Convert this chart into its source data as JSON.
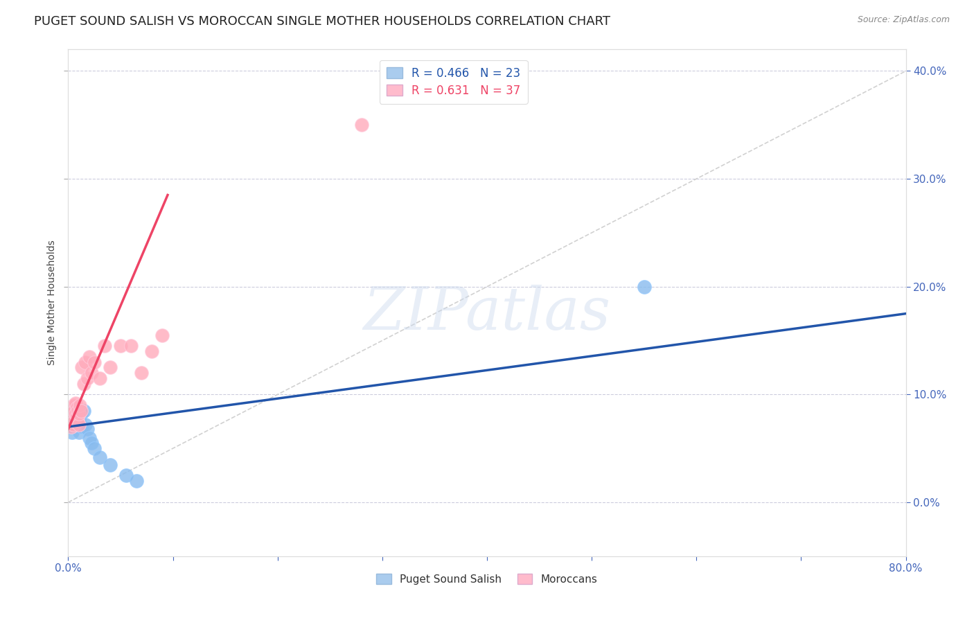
{
  "title": "PUGET SOUND SALISH VS MOROCCAN SINGLE MOTHER HOUSEHOLDS CORRELATION CHART",
  "source": "Source: ZipAtlas.com",
  "ylabel": "Single Mother Households",
  "xlim": [
    0.0,
    0.8
  ],
  "ylim": [
    -0.05,
    0.42
  ],
  "yticks": [
    0.0,
    0.1,
    0.2,
    0.3,
    0.4
  ],
  "xticks": [
    0.0,
    0.1,
    0.2,
    0.3,
    0.4,
    0.5,
    0.6,
    0.7,
    0.8
  ],
  "xtick_labels_show": [
    0.0,
    0.8
  ],
  "blue_R": "0.466",
  "blue_N": "23",
  "pink_R": "0.631",
  "pink_N": "37",
  "blue_dot_color": "#88BBEE",
  "pink_dot_color": "#FFAABB",
  "blue_dot_edge": "#99CCFF",
  "pink_dot_edge": "#FFCCDD",
  "blue_line_color": "#2255AA",
  "pink_line_color": "#EE4466",
  "ref_line_color": "#CCCCCC",
  "legend_blue_label": "Puget Sound Salish",
  "legend_pink_label": "Moroccans",
  "legend_blue_patch": "#AACCEE",
  "legend_pink_patch": "#FFBBCC",
  "watermark": "ZIPatlas",
  "blue_points_x": [
    0.003,
    0.004,
    0.005,
    0.006,
    0.007,
    0.008,
    0.008,
    0.009,
    0.01,
    0.01,
    0.012,
    0.013,
    0.015,
    0.016,
    0.018,
    0.02,
    0.022,
    0.025,
    0.03,
    0.04,
    0.055,
    0.065,
    0.55
  ],
  "blue_points_y": [
    0.07,
    0.065,
    0.075,
    0.08,
    0.07,
    0.085,
    0.075,
    0.072,
    0.078,
    0.065,
    0.082,
    0.07,
    0.085,
    0.072,
    0.068,
    0.06,
    0.055,
    0.05,
    0.042,
    0.035,
    0.025,
    0.02,
    0.2
  ],
  "pink_points_x": [
    0.002,
    0.002,
    0.003,
    0.003,
    0.004,
    0.004,
    0.005,
    0.005,
    0.005,
    0.006,
    0.006,
    0.007,
    0.007,
    0.008,
    0.008,
    0.009,
    0.009,
    0.01,
    0.01,
    0.011,
    0.012,
    0.013,
    0.015,
    0.016,
    0.018,
    0.02,
    0.022,
    0.025,
    0.03,
    0.035,
    0.04,
    0.05,
    0.06,
    0.07,
    0.08,
    0.09,
    0.28
  ],
  "pink_points_y": [
    0.075,
    0.08,
    0.07,
    0.078,
    0.082,
    0.088,
    0.072,
    0.08,
    0.09,
    0.075,
    0.085,
    0.082,
    0.092,
    0.08,
    0.088,
    0.076,
    0.085,
    0.072,
    0.082,
    0.09,
    0.085,
    0.125,
    0.11,
    0.13,
    0.115,
    0.135,
    0.12,
    0.13,
    0.115,
    0.145,
    0.125,
    0.145,
    0.145,
    0.12,
    0.14,
    0.155,
    0.35
  ],
  "blue_line_x0": 0.0,
  "blue_line_x1": 0.8,
  "blue_line_y0": 0.07,
  "blue_line_y1": 0.175,
  "pink_line_x0": 0.0,
  "pink_line_x1": 0.095,
  "pink_line_y0": 0.068,
  "pink_line_y1": 0.285,
  "ref_line_x0": 0.0,
  "ref_line_x1": 0.8,
  "ref_line_y0": 0.0,
  "ref_line_y1": 0.4,
  "background_color": "#FFFFFF",
  "grid_color": "#CCCCDD",
  "title_fontsize": 13,
  "axis_label_fontsize": 10,
  "tick_label_color": "#4466BB",
  "tick_label_fontsize": 11,
  "source_color": "#888888",
  "legend_text_color_blue": "#2255AA",
  "legend_text_color_pink": "#EE4466"
}
